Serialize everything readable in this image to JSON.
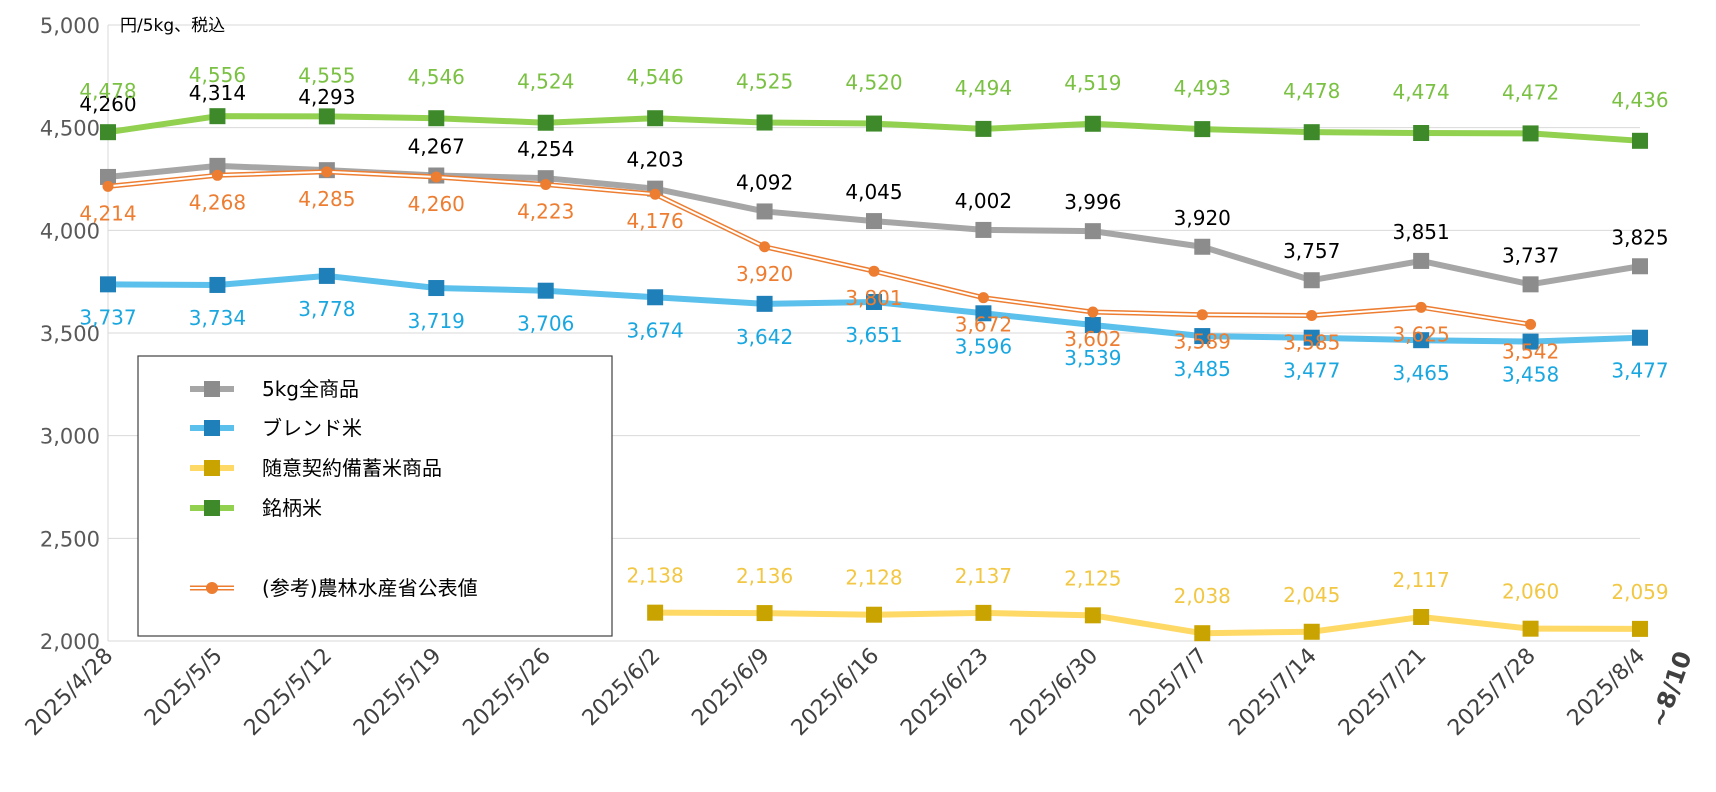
{
  "chart_data": {
    "type": "line",
    "unit_label": "円/5kg、税込",
    "x_extra_label": "~8/10",
    "categories": [
      "2025/4/28",
      "2025/5/5",
      "2025/5/12",
      "2025/5/19",
      "2025/5/26",
      "2025/6/2",
      "2025/6/9",
      "2025/6/16",
      "2025/6/23",
      "2025/6/30",
      "2025/7/7",
      "2025/7/14",
      "2025/7/21",
      "2025/7/28",
      "2025/8/4"
    ],
    "y_ticks": [
      "2,000",
      "2,500",
      "3,000",
      "3,500",
      "4,000",
      "4,500",
      "5,000"
    ],
    "ylim": [
      2000,
      5000
    ],
    "grid": true,
    "legend_position": "left-center",
    "series": [
      {
        "name": "5kg全商品",
        "color": "#a6a6a6",
        "marker_color": "#8c8c8c",
        "label_color": "#000000",
        "marker": "square",
        "values": [
          4260,
          4314,
          4293,
          4267,
          4254,
          4203,
          4092,
          4045,
          4002,
          3996,
          3920,
          3757,
          3851,
          3737,
          3825
        ],
        "labels": [
          "4,260",
          "4,314",
          "4,293",
          "4,267",
          "4,254",
          "4,203",
          "4,092",
          "4,045",
          "4,002",
          "3,996",
          "3,920",
          "3,757",
          "3,851",
          "3,737",
          "3,825"
        ]
      },
      {
        "name": "ブレンド米",
        "color": "#5bc0eb",
        "marker_color": "#1f7fb8",
        "label_color": "#1aa7e0",
        "marker": "square",
        "values": [
          3737,
          3734,
          3778,
          3719,
          3706,
          3674,
          3642,
          3651,
          3596,
          3539,
          3485,
          3477,
          3465,
          3458,
          3477
        ],
        "labels": [
          "3,737",
          "3,734",
          "3,778",
          "3,719",
          "3,706",
          "3,674",
          "3,642",
          "3,651",
          "3,596",
          "3,539",
          "3,485",
          "3,477",
          "3,465",
          "3,458",
          "3,477"
        ]
      },
      {
        "name": "随意契約備蓄米商品",
        "color": "#ffd966",
        "marker_color": "#c9a400",
        "label_color": "#f2c744",
        "marker": "square",
        "values": [
          null,
          null,
          null,
          null,
          null,
          2138,
          2136,
          2128,
          2137,
          2125,
          2038,
          2045,
          2117,
          2060,
          2059
        ],
        "labels": [
          "",
          "",
          "",
          "",
          "",
          "2,138",
          "2,136",
          "2,128",
          "2,137",
          "2,125",
          "2,038",
          "2,045",
          "2,117",
          "2,060",
          "2,059"
        ]
      },
      {
        "name": "銘柄米",
        "color": "#92d050",
        "marker_color": "#3e8a2a",
        "label_color": "#7ac143",
        "marker": "square",
        "values": [
          4478,
          4556,
          4555,
          4546,
          4524,
          4546,
          4525,
          4520,
          4494,
          4519,
          4493,
          4478,
          4474,
          4472,
          4436
        ],
        "labels": [
          "4,478",
          "4,556",
          "4,555",
          "4,546",
          "4,524",
          "4,546",
          "4,525",
          "4,520",
          "4,494",
          "4,519",
          "4,493",
          "4,478",
          "4,474",
          "4,472",
          "4,436"
        ]
      },
      {
        "name": "(参考)農林水産省公表値",
        "color": "#ed7d31",
        "marker_color": "#ed7d31",
        "label_color": "#ed7d31",
        "marker": "circle",
        "values": [
          4214,
          4268,
          4285,
          4260,
          4223,
          4176,
          3920,
          3801,
          3672,
          3602,
          3589,
          3585,
          3625,
          3542,
          null
        ],
        "labels": [
          "4,214",
          "4,268",
          "4,285",
          "4,260",
          "4,223",
          "4,176",
          "3,920",
          "3,801",
          "3,672",
          "3,602",
          "3,589",
          "3,585",
          "3,625",
          "3,542",
          ""
        ]
      }
    ]
  }
}
